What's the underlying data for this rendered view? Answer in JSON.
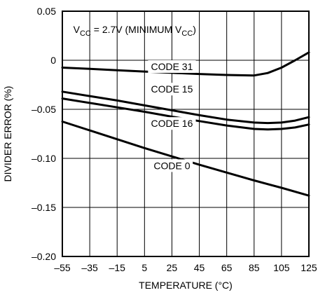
{
  "chart_data": {
    "type": "line",
    "condition": {
      "prefix": "V",
      "sub1": "CC",
      "middle": " = 2.7V (MINIMUM V",
      "sub2": "CC",
      "suffix": ")"
    },
    "xlabel": "TEMPERATURE (°C)",
    "ylabel": "DIVIDER ERROR (%)",
    "xlim": [
      -55,
      125
    ],
    "ylim": [
      -0.2,
      0.05
    ],
    "x_ticks": [
      -55,
      -35,
      -15,
      5,
      25,
      45,
      65,
      85,
      105,
      125
    ],
    "x_tick_labels": [
      "–55",
      "–35",
      "–15",
      "5",
      "25",
      "45",
      "65",
      "85",
      "105",
      "125"
    ],
    "y_ticks": [
      0.05,
      0,
      -0.05,
      -0.1,
      -0.15,
      -0.2
    ],
    "y_tick_labels": [
      "0.05",
      "0",
      "–0.05",
      "–0.10",
      "–0.15",
      "–0.20"
    ],
    "grid": true,
    "series": [
      {
        "name": "CODE 31",
        "x": [
          -55,
          -35,
          -15,
          5,
          25,
          45,
          65,
          85,
          95,
          105,
          115,
          125
        ],
        "y": [
          -0.0075,
          -0.0088,
          -0.0102,
          -0.0115,
          -0.0128,
          -0.014,
          -0.015,
          -0.0155,
          -0.013,
          -0.0075,
          0.0,
          0.008
        ]
      },
      {
        "name": "CODE 15",
        "x": [
          -55,
          -35,
          -15,
          5,
          25,
          45,
          65,
          85,
          95,
          105,
          115,
          125
        ],
        "y": [
          -0.032,
          -0.0365,
          -0.041,
          -0.046,
          -0.051,
          -0.056,
          -0.0605,
          -0.0635,
          -0.064,
          -0.0635,
          -0.0615,
          -0.058
        ]
      },
      {
        "name": "CODE 16",
        "x": [
          -55,
          -35,
          -15,
          5,
          25,
          45,
          65,
          85,
          95,
          105,
          115,
          125
        ],
        "y": [
          -0.039,
          -0.0435,
          -0.048,
          -0.0525,
          -0.0575,
          -0.062,
          -0.0665,
          -0.07,
          -0.0705,
          -0.07,
          -0.0685,
          -0.0655
        ]
      },
      {
        "name": "CODE 0",
        "x": [
          -55,
          -35,
          -15,
          5,
          25,
          45,
          65,
          85,
          105,
          125
        ],
        "y": [
          -0.0625,
          -0.0715,
          -0.0805,
          -0.0895,
          -0.098,
          -0.1065,
          -0.1145,
          -0.1225,
          -0.13,
          -0.138
        ]
      }
    ]
  }
}
